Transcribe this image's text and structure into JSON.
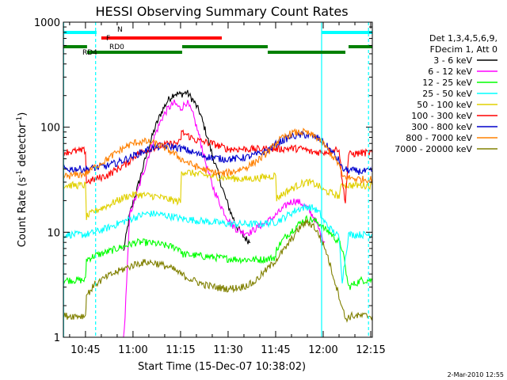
{
  "chart_data": {
    "type": "line",
    "title": "HESSI Observing Summary Count Rates",
    "xlabel": "Start Time (15-Dec-07 10:38:02)",
    "ylabel_main": "Count Rate (s",
    "ylabel_sup1": "-1",
    "ylabel_mid": " detector",
    "ylabel_sup2": "-1",
    "ylabel_end": ")",
    "footer_date": "2-Mar-2010 12:55",
    "x_start_min": 638.03,
    "x_end_min": 735.5,
    "ylim": [
      1,
      1000
    ],
    "y_scale": "log",
    "x_ticks": [
      {
        "label": "10:45",
        "min": 645
      },
      {
        "label": "11:00",
        "min": 660
      },
      {
        "label": "11:15",
        "min": 675
      },
      {
        "label": "11:30",
        "min": 690
      },
      {
        "label": "11:45",
        "min": 705
      },
      {
        "label": "12:00",
        "min": 720
      },
      {
        "label": "12:15",
        "min": 735
      }
    ],
    "y_ticks": [
      {
        "label": "1",
        "value": 1
      },
      {
        "label": "10",
        "value": 10
      },
      {
        "label": "100",
        "value": 100
      },
      {
        "label": "1000",
        "value": 1000
      }
    ],
    "legend": {
      "header": [
        "Det 1,3,4,5,6,9,",
        "FDecim 1, Att 0"
      ],
      "position": "right"
    },
    "series": [
      {
        "name": "3 - 6 keV",
        "color": "#000000",
        "x": [
          657,
          659,
          661,
          663,
          665,
          667,
          669,
          671,
          673,
          675,
          677,
          679,
          681,
          683,
          685,
          687,
          689,
          691,
          693,
          695,
          697
        ],
        "y": [
          6.5,
          15,
          24,
          40,
          65,
          100,
          140,
          180,
          210,
          205,
          215,
          180,
          140,
          90,
          55,
          35,
          22,
          15,
          11,
          9,
          8
        ]
      },
      {
        "name": "6 - 12 keV",
        "color": "#ff00ff",
        "x": [
          638,
          657,
          659,
          661,
          663,
          665,
          667,
          669,
          671,
          673,
          675,
          677,
          679,
          681,
          683,
          685,
          687,
          689,
          691,
          693,
          695,
          697,
          699,
          701,
          703,
          705,
          707,
          709,
          711,
          713,
          715,
          717,
          719,
          720.5
        ],
        "y": [
          0.8,
          0.8,
          15,
          22,
          35,
          55,
          85,
          120,
          150,
          170,
          150,
          175,
          130,
          80,
          45,
          28,
          20,
          15,
          12,
          10.5,
          10,
          10,
          11,
          12,
          13,
          14.5,
          16.5,
          19,
          20,
          19,
          17,
          14,
          10,
          8
        ]
      },
      {
        "name": "12 - 25 keV",
        "color": "#00ff00",
        "x": [
          638,
          645,
          645.3,
          648,
          652,
          655,
          658,
          661,
          664,
          667,
          670,
          673,
          675,
          675.3,
          680,
          685,
          690,
          695,
          700,
          703,
          705,
          705.3,
          708,
          711,
          713,
          715,
          717,
          719,
          720,
          722,
          725,
          726,
          728,
          732,
          735.5
        ],
        "y": [
          3.5,
          3.5,
          5.5,
          6,
          6.5,
          7,
          7.5,
          8,
          8,
          7.8,
          7.5,
          7.2,
          7,
          6.2,
          6,
          5.8,
          5.6,
          5.5,
          5.5,
          5.6,
          5.8,
          7,
          9,
          11,
          12.5,
          13.5,
          13,
          12,
          11,
          10,
          8,
          7,
          3,
          3.5,
          3.5
        ]
      },
      {
        "name": "25 - 50 keV",
        "color": "#00ffff",
        "x": [
          638,
          645,
          648,
          652,
          655,
          658,
          661,
          664,
          667,
          670,
          673,
          675,
          680,
          685,
          690,
          695,
          700,
          705,
          708,
          711,
          713,
          715,
          717,
          719,
          720,
          722,
          725,
          726,
          728,
          732,
          735.5
        ],
        "y": [
          9.5,
          9.5,
          10,
          11,
          12,
          13,
          14,
          15,
          15,
          14.5,
          14,
          13.5,
          13,
          12.5,
          12,
          12,
          12,
          12.5,
          14,
          16,
          17,
          17.5,
          17,
          15,
          13,
          11,
          9,
          3.5,
          9.5,
          9.5,
          9.5
        ]
      },
      {
        "name": "50 - 100 keV",
        "color": "#e0d000",
        "x": [
          638,
          645,
          645.3,
          648,
          652,
          655,
          658,
          661,
          664,
          667,
          670,
          673,
          675,
          675.3,
          680,
          685,
          690,
          695,
          700,
          703,
          705,
          705.3,
          708,
          711,
          713,
          715,
          717,
          719,
          720,
          722,
          725,
          726,
          728,
          732,
          735.5
        ],
        "y": [
          28,
          28,
          14,
          16,
          18,
          20,
          22,
          23,
          22.5,
          22,
          21,
          20,
          19.5,
          38,
          36,
          34,
          33,
          32,
          33,
          34,
          35,
          21,
          24,
          27,
          29,
          30,
          29,
          27,
          25,
          24,
          22,
          29,
          28,
          28,
          28
        ]
      },
      {
        "name": "100 - 300 keV",
        "color": "#ff0000",
        "x": [
          638,
          645,
          645.3,
          648,
          652,
          655,
          658,
          661,
          664,
          667,
          670,
          673,
          675,
          675.3,
          680,
          685,
          690,
          695,
          700,
          705,
          710,
          714,
          716,
          720,
          723,
          725,
          726,
          727,
          728,
          732,
          735.5
        ],
        "y": [
          58,
          60,
          30,
          32,
          35,
          40,
          45,
          55,
          60,
          65,
          68,
          70,
          72,
          90,
          75,
          70,
          62,
          62,
          62,
          62,
          63,
          62,
          58,
          58,
          60,
          63,
          30,
          20,
          55,
          57,
          57
        ]
      },
      {
        "name": "300 - 800 keV",
        "color": "#0000cc",
        "x": [
          638,
          645,
          648,
          652,
          655,
          658,
          661,
          664,
          667,
          670,
          673,
          676,
          680,
          684,
          688,
          692,
          696,
          700,
          703,
          706,
          710,
          714,
          718,
          720,
          722,
          725,
          726,
          728,
          732,
          735.5
        ],
        "y": [
          40,
          40,
          41,
          43,
          46,
          50,
          55,
          60,
          65,
          66,
          65,
          62,
          56,
          52,
          50,
          50,
          52,
          56,
          62,
          72,
          82,
          85,
          80,
          72,
          62,
          48,
          40,
          39,
          38,
          38
        ]
      },
      {
        "name": "800 - 7000 keV",
        "color": "#ff8000",
        "x": [
          638,
          645,
          648,
          652,
          655,
          658,
          661,
          664,
          667,
          670,
          673,
          676,
          680,
          684,
          688,
          692,
          696,
          700,
          703,
          706,
          710,
          714,
          718,
          720,
          722,
          725,
          726,
          728,
          732,
          735.5
        ],
        "y": [
          34,
          36,
          42,
          50,
          58,
          66,
          72,
          73,
          70,
          64,
          56,
          48,
          42,
          38,
          36,
          38,
          42,
          50,
          60,
          75,
          88,
          90,
          80,
          70,
          58,
          44,
          34,
          33,
          32,
          32
        ]
      },
      {
        "name": "7000 - 20000 keV",
        "color": "#808000",
        "x": [
          638,
          645,
          645.3,
          648,
          652,
          655,
          658,
          661,
          664,
          667,
          670,
          673,
          675,
          678,
          682,
          686,
          690,
          694,
          698,
          700,
          704,
          708,
          711,
          713,
          715,
          717,
          719,
          721,
          723,
          725,
          727,
          729,
          731,
          735.5
        ],
        "y": [
          1.6,
          1.6,
          2.5,
          3.2,
          3.8,
          4.2,
          4.6,
          5,
          5.2,
          5.1,
          4.8,
          4.4,
          4,
          3.6,
          3.2,
          3,
          2.9,
          3,
          3.3,
          3.8,
          5,
          7,
          9.5,
          11.5,
          12.5,
          11.5,
          9,
          6.5,
          4,
          2.5,
          1.5,
          1.6,
          1.6,
          1.6
        ]
      }
    ],
    "state_bars": [
      {
        "label": "N",
        "color": "#00ffff",
        "segments": [
          [
            638.1,
            648.5
          ],
          [
            719.5,
            735.5
          ]
        ],
        "row": 0
      },
      {
        "label": "F",
        "color": "#ff0000",
        "segments": [
          [
            650,
            688
          ]
        ],
        "row": 1
      },
      {
        "label": "RD0",
        "color": "#008000",
        "segments": [
          [
            638.1,
            645.5
          ],
          [
            675.5,
            702.5
          ],
          [
            728,
            735.5
          ]
        ],
        "row": 2
      },
      {
        "label": "RD4",
        "color": "#008000",
        "segments": [
          [
            645.5,
            675.5
          ],
          [
            702.5,
            727
          ]
        ],
        "row": 3
      }
    ],
    "markers": [
      {
        "min": 648.2,
        "color": "#00ffff",
        "style": "dashed"
      },
      {
        "min": 719.5,
        "color": "#00ffff",
        "style": "solid"
      },
      {
        "min": 734.3,
        "color": "#00ffff",
        "style": "dashed"
      },
      {
        "min": 638.1,
        "color": "#00ffff",
        "style": "solid"
      }
    ]
  }
}
